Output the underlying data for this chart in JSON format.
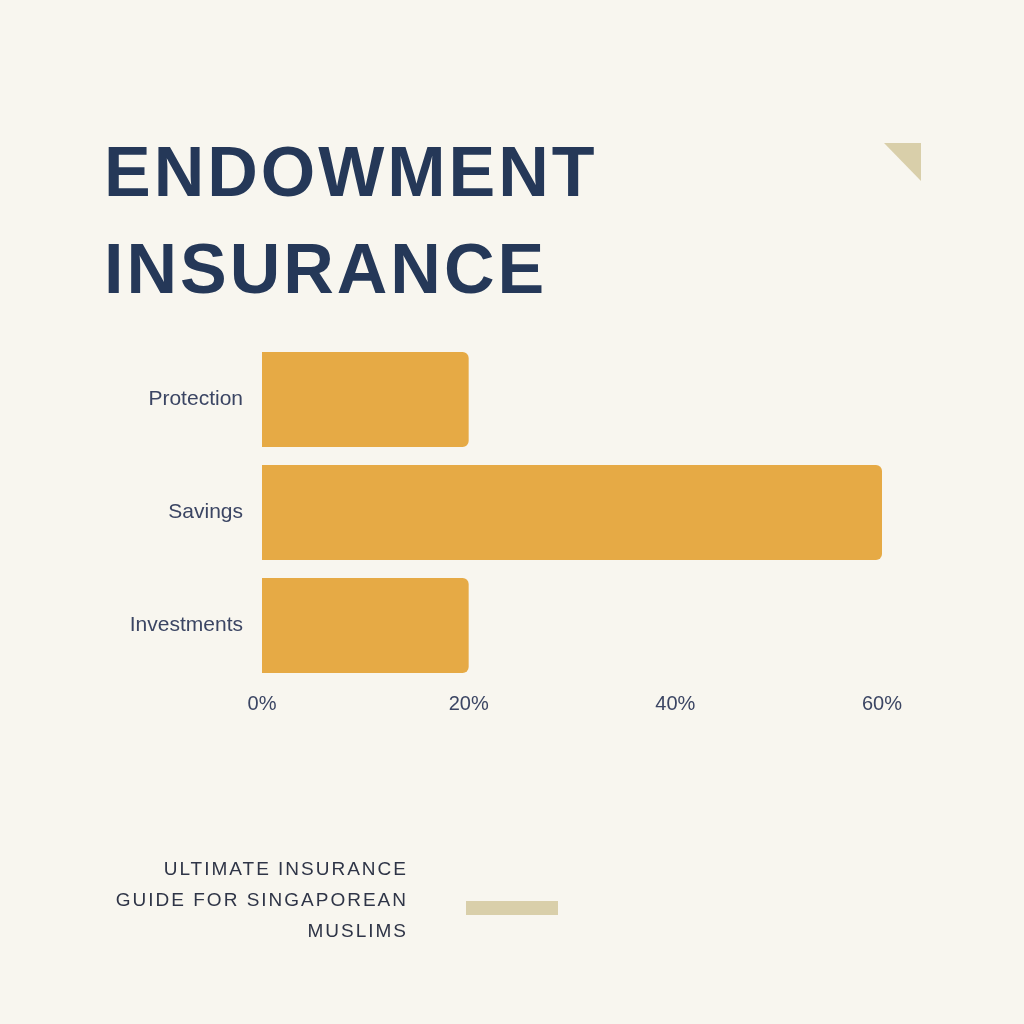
{
  "chart_data": {
    "type": "bar",
    "orientation": "horizontal",
    "title": "ENDOWMENT INSURANCE",
    "categories": [
      "Protection",
      "Savings",
      "Investments"
    ],
    "values": [
      20,
      60,
      20
    ],
    "color": "#e6aa45",
    "xlim": [
      0,
      60
    ],
    "xticks": [
      {
        "value": 0,
        "label": "0%"
      },
      {
        "value": 20,
        "label": "20%"
      },
      {
        "value": 40,
        "label": "40%"
      },
      {
        "value": 60,
        "label": "60%"
      }
    ],
    "grid": false,
    "legend": false,
    "annotations": [
      "ULTIMATE INSURANCE GUIDE FOR SINGAPOREAN MUSLIMS"
    ]
  }
}
